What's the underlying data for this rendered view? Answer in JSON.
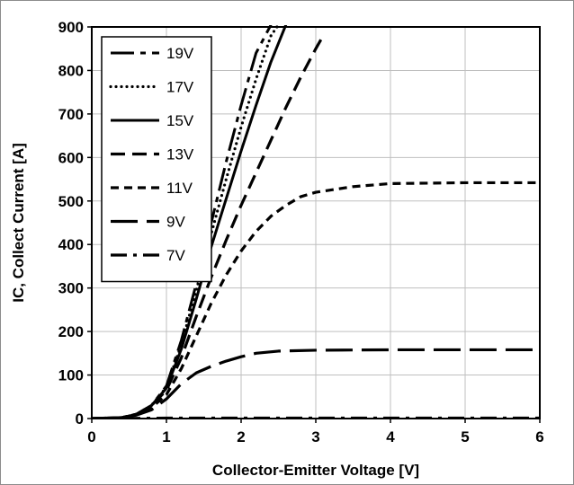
{
  "chart_data": {
    "type": "line",
    "xlabel": "Collector-Emitter Voltage [V]",
    "ylabel": "IC, Collect Current [A]",
    "xlim": [
      0,
      6
    ],
    "ylim": [
      0,
      900
    ],
    "xticks": [
      "0",
      "1",
      "2",
      "3",
      "4",
      "5",
      "6"
    ],
    "yticks": [
      "0",
      "100",
      "200",
      "300",
      "400",
      "500",
      "600",
      "700",
      "800",
      "900"
    ],
    "grid": true,
    "legend_position": "top-left",
    "series": [
      {
        "name": "19V",
        "dash": "long-dash",
        "x": [
          0,
          0.4,
          0.6,
          0.8,
          1.0,
          1.2,
          1.4,
          1.6,
          1.8,
          2.0,
          2.2,
          2.4
        ],
        "y": [
          0,
          2,
          10,
          30,
          75,
          180,
          310,
          450,
          590,
          720,
          840,
          905
        ]
      },
      {
        "name": "17V",
        "dash": "dotted",
        "x": [
          0,
          0.4,
          0.6,
          0.8,
          1.0,
          1.2,
          1.4,
          1.6,
          1.8,
          2.0,
          2.2,
          2.4,
          2.5
        ],
        "y": [
          0,
          2,
          10,
          30,
          72,
          170,
          295,
          425,
          550,
          670,
          780,
          880,
          905
        ]
      },
      {
        "name": "15V",
        "dash": "solid",
        "x": [
          0,
          0.4,
          0.6,
          0.8,
          1.0,
          1.2,
          1.4,
          1.6,
          1.8,
          2.0,
          2.2,
          2.4,
          2.6
        ],
        "y": [
          0,
          2,
          10,
          30,
          70,
          160,
          275,
          395,
          505,
          615,
          720,
          820,
          905
        ]
      },
      {
        "name": "13V",
        "dash": "dashed",
        "x": [
          0,
          0.4,
          0.6,
          0.8,
          1.0,
          1.2,
          1.4,
          1.6,
          1.8,
          2.0,
          2.2,
          2.4,
          2.6,
          2.8,
          3.0,
          3.1
        ],
        "y": [
          0,
          2,
          10,
          30,
          65,
          140,
          235,
          325,
          410,
          490,
          565,
          640,
          715,
          785,
          850,
          880
        ]
      },
      {
        "name": "11V",
        "dash": "short-dash",
        "x": [
          0,
          0.4,
          0.6,
          0.8,
          1.0,
          1.2,
          1.4,
          1.6,
          1.8,
          2.0,
          2.2,
          2.4,
          2.6,
          2.8,
          3.0,
          3.5,
          4.0,
          5.0,
          6.0
        ],
        "y": [
          0,
          2,
          10,
          25,
          55,
          115,
          190,
          265,
          330,
          385,
          430,
          465,
          490,
          510,
          520,
          533,
          540,
          542,
          542
        ]
      },
      {
        "name": "9V",
        "dash": "long-dash-2",
        "x": [
          0,
          0.4,
          0.6,
          0.8,
          1.0,
          1.2,
          1.4,
          1.6,
          1.8,
          2.0,
          2.2,
          2.5,
          3.0,
          4.0,
          5.0,
          6.0
        ],
        "y": [
          0,
          2,
          8,
          20,
          45,
          80,
          105,
          120,
          132,
          142,
          150,
          155,
          157,
          158,
          158,
          158
        ]
      },
      {
        "name": "7V",
        "dash": "dash-dot",
        "x": [
          0,
          1.0,
          2.0,
          3.0,
          4.0,
          5.0,
          6.0
        ],
        "y": [
          0,
          1,
          1,
          1,
          1,
          1,
          1
        ]
      }
    ]
  }
}
